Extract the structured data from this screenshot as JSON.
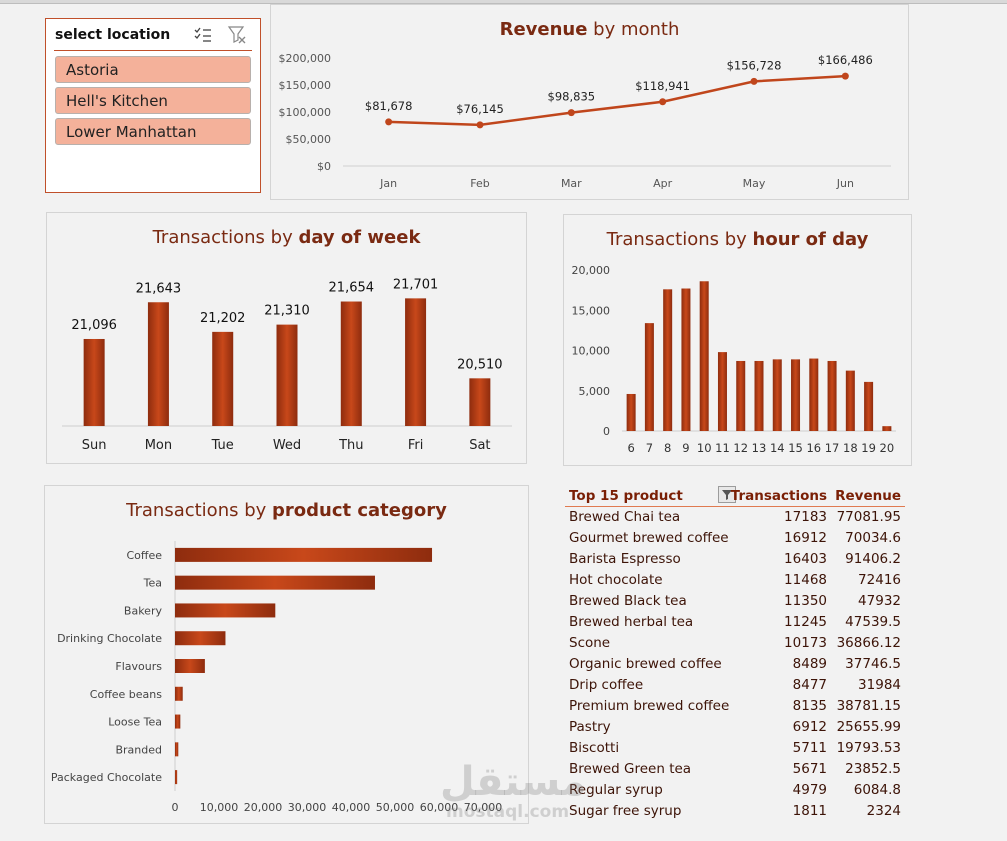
{
  "slicer": {
    "header": "select location",
    "items": [
      "Astoria",
      "Hell's Kitchen",
      "Lower Manhattan"
    ]
  },
  "revenue_chart": {
    "title_bold": "Revenue",
    "title_rest": " by month"
  },
  "dow_chart": {
    "title_rest": "Transactions by ",
    "title_bold": "day of week"
  },
  "hour_chart": {
    "title_rest": "Transactions by ",
    "title_bold": "hour of day"
  },
  "cat_chart": {
    "title_rest": "Transactions by ",
    "title_bold": "product category"
  },
  "chart_data": [
    {
      "type": "line",
      "categories": [
        "Jan",
        "Feb",
        "Mar",
        "Apr",
        "May",
        "Jun"
      ],
      "values": [
        81678,
        76145,
        98835,
        118941,
        156728,
        166486
      ],
      "data_labels": [
        "$81,678",
        "$76,145",
        "$98,835",
        "$118,941",
        "$156,728",
        "$166,486"
      ],
      "yticks": [
        "$0",
        "$50,000",
        "$100,000",
        "$150,000",
        "$200,000"
      ],
      "ylim": [
        0,
        200000
      ],
      "color": "#c0461c"
    },
    {
      "type": "bar",
      "categories": [
        "Sun",
        "Mon",
        "Tue",
        "Wed",
        "Thu",
        "Fri",
        "Sat"
      ],
      "values": [
        21096,
        21643,
        21202,
        21310,
        21654,
        21701,
        20510
      ],
      "data_labels": [
        "21,096",
        "21,643",
        "21,202",
        "21,310",
        "21,654",
        "21,701",
        "20,510"
      ],
      "ylim": [
        19800,
        21900
      ],
      "color": "#b2401a"
    },
    {
      "type": "bar",
      "categories": [
        "6",
        "7",
        "8",
        "9",
        "10",
        "11",
        "12",
        "13",
        "14",
        "15",
        "16",
        "17",
        "18",
        "19",
        "20"
      ],
      "values": [
        4600,
        13400,
        17600,
        17700,
        18600,
        9800,
        8700,
        8700,
        8900,
        8900,
        9000,
        8700,
        7500,
        6100,
        600
      ],
      "yticks": [
        "0",
        "5,000",
        "10,000",
        "15,000",
        "20,000"
      ],
      "ylim": [
        0,
        20000
      ],
      "color": "#b2401a"
    },
    {
      "type": "bar",
      "orientation": "horizontal",
      "categories": [
        "Coffee",
        "Tea",
        "Bakery",
        "Drinking Chocolate",
        "Flavours",
        "Coffee beans",
        "Loose Tea",
        "Branded",
        "Packaged Chocolate"
      ],
      "values": [
        58416,
        45449,
        22796,
        11468,
        6790,
        1753,
        1210,
        747,
        487
      ],
      "xticks": [
        "0",
        "10,000",
        "20,000",
        "30,000",
        "40,000",
        "50,000",
        "60,000",
        "70,000"
      ],
      "xlim": [
        0,
        70000
      ],
      "color": "#b2401a"
    }
  ],
  "table": {
    "headers": [
      "Top 15 product",
      "Transactions",
      "Revenue"
    ],
    "rows": [
      [
        "Brewed Chai tea",
        "17183",
        "77081.95"
      ],
      [
        "Gourmet brewed coffee",
        "16912",
        "70034.6"
      ],
      [
        "Barista Espresso",
        "16403",
        "91406.2"
      ],
      [
        "Hot chocolate",
        "11468",
        "72416"
      ],
      [
        "Brewed Black tea",
        "11350",
        "47932"
      ],
      [
        "Brewed herbal tea",
        "11245",
        "47539.5"
      ],
      [
        "Scone",
        "10173",
        "36866.12"
      ],
      [
        "Organic brewed coffee",
        "8489",
        "37746.5"
      ],
      [
        "Drip coffee",
        "8477",
        "31984"
      ],
      [
        "Premium brewed coffee",
        "8135",
        "38781.15"
      ],
      [
        "Pastry",
        "6912",
        "25655.99"
      ],
      [
        "Biscotti",
        "5711",
        "19793.53"
      ],
      [
        "Brewed Green tea",
        "5671",
        "23852.5"
      ],
      [
        "Regular syrup",
        "4979",
        "6084.8"
      ],
      [
        "Sugar free syrup",
        "1811",
        "2324"
      ]
    ]
  },
  "watermark": {
    "arabic": "مستقل",
    "latin": "mostaql.com"
  }
}
